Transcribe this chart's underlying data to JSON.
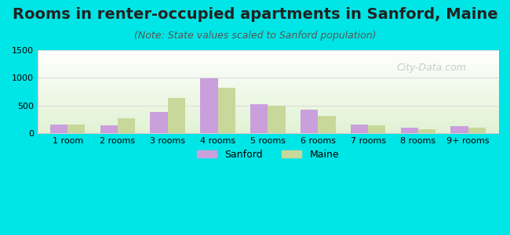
{
  "title": "Rooms in renter-occupied apartments in Sanford, Maine",
  "subtitle": "(Note: State values scaled to Sanford population)",
  "categories": [
    "1 room",
    "2 rooms",
    "3 rooms",
    "4 rooms",
    "5 rooms",
    "6 rooms",
    "7 rooms",
    "8 rooms",
    "9+ rooms"
  ],
  "sanford_values": [
    165,
    145,
    380,
    995,
    530,
    425,
    165,
    105,
    125
  ],
  "maine_values": [
    155,
    275,
    645,
    820,
    495,
    320,
    140,
    80,
    100
  ],
  "sanford_color": "#c9a0dc",
  "maine_color": "#c8d89a",
  "background_outer": "#00e5e5",
  "ylim": [
    0,
    1500
  ],
  "yticks": [
    0,
    500,
    1000,
    1500
  ],
  "bar_width": 0.35,
  "title_fontsize": 14,
  "subtitle_fontsize": 9,
  "tick_fontsize": 8,
  "legend_fontsize": 9,
  "watermark": "City-Data.com"
}
